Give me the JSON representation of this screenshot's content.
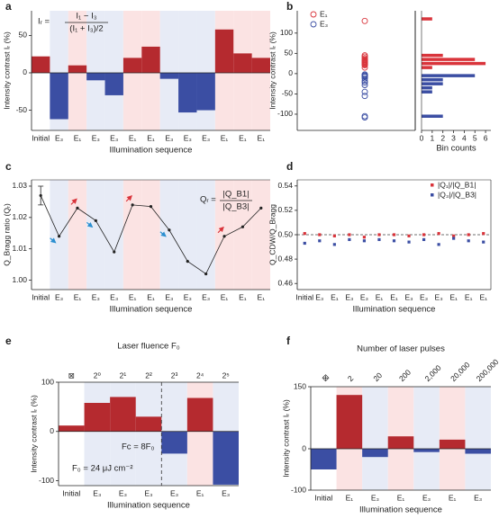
{
  "chart_data": [
    {
      "type": "bar",
      "label": "a",
      "categories": [
        "Initial",
        "E₃",
        "E₁",
        "E₃",
        "E₃",
        "E₁",
        "E₁",
        "E₃",
        "E₃",
        "E₃",
        "E₁",
        "E₁",
        "E₁"
      ],
      "values": [
        22,
        -62,
        10,
        -10,
        -30,
        20,
        35,
        -8,
        -53,
        -50,
        58,
        26,
        20
      ],
      "ylim": [
        -77,
        83
      ],
      "yticks": [
        -50,
        0,
        50
      ],
      "y_label": "Intensity contrast Iᵣ (%)",
      "x_label": "Illumination sequence",
      "annotations": [
        "Iᵣ =",
        "I₁ − I₃",
        "(I₁ + I₃)/2"
      ],
      "colors": {
        "positive": "#b52a2f",
        "negative": "#3b4ea3"
      },
      "band_colors": {
        "E₁": "#fbe3e3",
        "E₃": "#e7ebf6"
      }
    },
    {
      "type": "strip_histogram",
      "label": "b",
      "series": [
        {
          "name": "E₁",
          "color": "#d9343b",
          "values": [
            130,
            45,
            42,
            38,
            35,
            33,
            32,
            30,
            28,
            27,
            25,
            23,
            22,
            21,
            15
          ]
        },
        {
          "name": "E₃",
          "color": "#3b4ea3",
          "values": [
            -2,
            -3,
            -5,
            -7,
            -8,
            -12,
            -18,
            -22,
            -28,
            -45,
            -55,
            -105,
            -108
          ]
        }
      ],
      "bins": [
        -120,
        -110,
        -100,
        -90,
        -80,
        -70,
        -60,
        -50,
        -40,
        -30,
        -20,
        -10,
        0,
        10,
        20,
        30,
        40,
        50,
        60,
        70,
        80,
        90,
        100,
        110,
        120,
        130,
        140
      ],
      "histogram": [
        {
          "name": "E₁",
          "color": "#d9343b",
          "counts": [
            0,
            0,
            0,
            0,
            0,
            0,
            0,
            0,
            0,
            0,
            0,
            0,
            0,
            1,
            6,
            5,
            2,
            0,
            0,
            0,
            0,
            0,
            0,
            0,
            0,
            1
          ]
        },
        {
          "name": "E₃",
          "color": "#3b4ea3",
          "counts": [
            0,
            2,
            0,
            0,
            0,
            0,
            0,
            1,
            1,
            2,
            2,
            5,
            0,
            0,
            0,
            0,
            0,
            0,
            0,
            0,
            0,
            0,
            0,
            0,
            0,
            0
          ]
        }
      ],
      "ylim": [
        -140,
        155
      ],
      "yticks": [
        -100,
        -50,
        0,
        50,
        100
      ],
      "xlim": [
        0,
        6.5
      ],
      "xticks": [
        0,
        1,
        2,
        3,
        4,
        5,
        6
      ],
      "y_label": "Intensity contrast Iᵣ (%)",
      "x_label": "Bin counts"
    },
    {
      "type": "line",
      "label": "c",
      "categories": [
        "Initial",
        "E₃",
        "E₁",
        "E₃",
        "E₃",
        "E₁",
        "E₁",
        "E₃",
        "E₃",
        "E₃",
        "E₁",
        "E₁",
        "E₁"
      ],
      "values": [
        1.027,
        1.014,
        1.023,
        1.019,
        1.009,
        1.024,
        1.0235,
        1.016,
        1.006,
        1.002,
        1.014,
        1.017,
        1.023
      ],
      "errors": [
        0.003,
        null,
        null,
        null,
        null,
        null,
        null,
        null,
        null,
        null,
        null,
        null,
        null
      ],
      "ylim": [
        0.997,
        1.032
      ],
      "yticks": [
        {
          "value": 1.0,
          "label": "1.00"
        },
        1.01,
        1.02,
        1.03
      ],
      "y_label": "Q_Bragg ratio (Qᵣ)",
      "x_label": "Illumination sequence",
      "annotations": [
        "Qᵣ =",
        "|Q_B1|",
        "|Q_B3|"
      ],
      "color": "#222",
      "band_colors": {
        "E₁": "#fbe3e3",
        "E₃": "#e7ebf6"
      }
    },
    {
      "type": "dots",
      "label": "d",
      "categories": [
        "Initial",
        "E₃",
        "E₁",
        "E₃",
        "E₃",
        "E₁",
        "E₁",
        "E₃",
        "E₃",
        "E₃",
        "E₁",
        "E₁",
        "E₁"
      ],
      "series": [
        {
          "name": "|Q₁|/|Q_B1|",
          "color": "#d9343b",
          "values": [
            0.501,
            0.5,
            0.499,
            0.5,
            0.498,
            0.5,
            0.5,
            0.499,
            0.5,
            0.501,
            0.499,
            0.5,
            0.501
          ]
        },
        {
          "name": "|Q₃|/|Q_B3|",
          "color": "#3b4ea3",
          "values": [
            0.493,
            0.495,
            0.492,
            0.496,
            0.495,
            0.496,
            0.495,
            0.494,
            0.496,
            0.492,
            0.497,
            0.495,
            0.494
          ]
        }
      ],
      "hline": 0.5,
      "ylim": [
        0.455,
        0.545
      ],
      "yticks": [
        0.46,
        0.48,
        {
          "value": 0.5,
          "label": "0.50"
        },
        0.52,
        0.54
      ],
      "y_label": "Q_CDW/Q_Bragg",
      "x_label": "Illumination sequence"
    },
    {
      "type": "bar",
      "label": "e",
      "categories": [
        "Initial",
        "E₃",
        "E₃",
        "E₃",
        "E₃",
        "E₁",
        "E₃"
      ],
      "top_labels": [
        "⊠",
        "2⁰",
        "2¹",
        "2²",
        "2³",
        "2⁴",
        "2⁵"
      ],
      "top_title": "Laser fluence F₀",
      "values": [
        12,
        58,
        70,
        30,
        -45,
        68,
        -108
      ],
      "ylim": [
        -110,
        100
      ],
      "yticks": [
        -100,
        0,
        100
      ],
      "y_label": "Intensity contrast Iᵣ (%)",
      "x_label": "Illumination sequence",
      "annotations": [
        "Fc = 8F₀",
        "F₀ = 24 μJ cm⁻²"
      ],
      "colors": {
        "positive": "#b52a2f",
        "negative": "#3b4ea3"
      },
      "band_colors": {
        "E₁": "#fbe3e3",
        "E₃": "#e7ebf6"
      }
    },
    {
      "type": "bar",
      "label": "f",
      "categories": [
        "Initial",
        "E₁",
        "E₃",
        "E₁",
        "E₃",
        "E₁",
        "E₃"
      ],
      "top_labels": [
        "⊠",
        "2",
        "20",
        "200",
        "2,000",
        "20,000",
        "200,000"
      ],
      "top_title": "Number of laser pulses",
      "values": [
        -50,
        130,
        -20,
        30,
        -8,
        22,
        -12
      ],
      "ylim": [
        -100,
        150
      ],
      "yticks": [
        -100,
        0,
        150
      ],
      "y_label": "Intensity contrast Iᵣ (%)",
      "x_label": "Illumination sequence",
      "colors": {
        "positive": "#b52a2f",
        "negative": "#3b4ea3"
      },
      "band_colors": {
        "E₁": "#fbe3e3",
        "E₃": "#e7ebf6"
      }
    }
  ]
}
